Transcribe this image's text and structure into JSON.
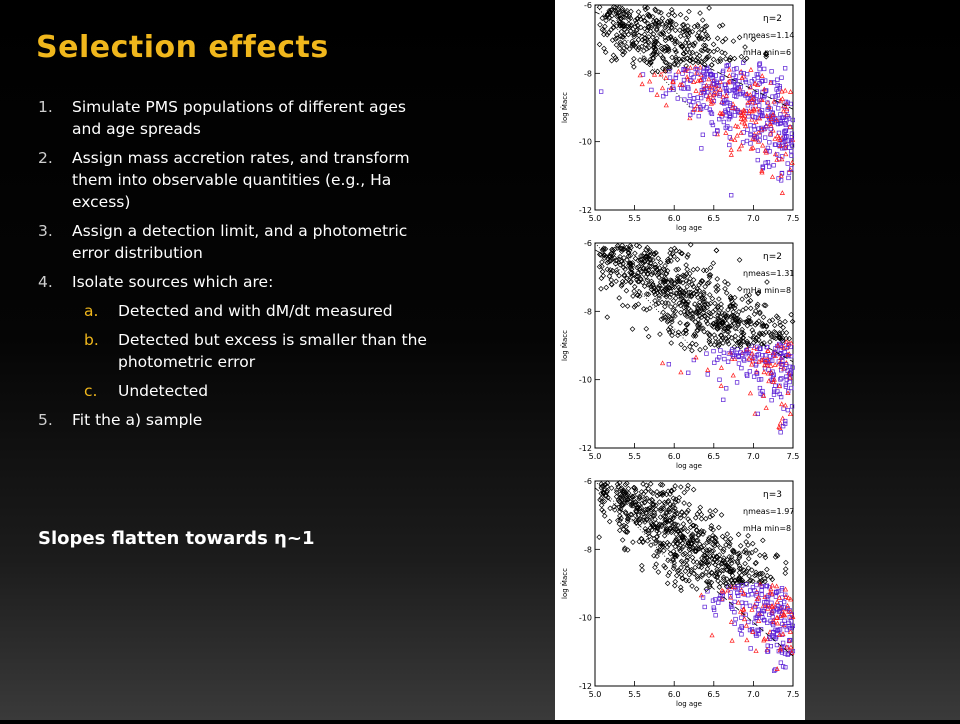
{
  "slide": {
    "title": "Selection effects",
    "items": [
      {
        "num": "1.",
        "text": "Simulate PMS populations of different ages and age spreads"
      },
      {
        "num": "2.",
        "text": "Assign mass accretion rates, and transform them into observable quantities (e.g., Ha excess)"
      },
      {
        "num": "3.",
        "text": "Assign a detection limit, and a photometric error distribution"
      },
      {
        "num": "4.",
        "text": "Isolate sources which are:"
      }
    ],
    "subitems": [
      {
        "num": "a.",
        "text": "Detected and with dM/dt measured"
      },
      {
        "num": "b.",
        "text": "Detected but excess is smaller than the photometric error"
      },
      {
        "num": "c.",
        "text": "Undetected"
      }
    ],
    "item5": {
      "num": "5.",
      "text": "Fit the a) sample"
    },
    "conclusion": "Slopes flatten towards η~1"
  },
  "chart_data": [
    {
      "type": "scatter",
      "xlabel": "log age",
      "ylabel": "log Ṁacc",
      "xlim": [
        5.0,
        7.5
      ],
      "ylim": [
        -12,
        -6
      ],
      "xticks": [
        "5.0",
        "5.5",
        "6.0",
        "6.5",
        "7.0",
        "7.5"
      ],
      "yticks": [
        "-6",
        "-8",
        "-10",
        "-12"
      ],
      "annotations": [
        "η=2",
        "ηmeas=1.14",
        "mHa min=6"
      ],
      "eta": 2,
      "eta_meas": 1.14,
      "m_lim": 6
    },
    {
      "type": "scatter",
      "xlabel": "log age",
      "ylabel": "log Ṁacc",
      "xlim": [
        5.0,
        7.5
      ],
      "ylim": [
        -12,
        -6
      ],
      "xticks": [
        "5.0",
        "5.5",
        "6.0",
        "6.5",
        "7.0",
        "7.5"
      ],
      "yticks": [
        "-6",
        "-8",
        "-10",
        "-12"
      ],
      "annotations": [
        "η=2",
        "ηmeas=1.31",
        "mHa min=8"
      ],
      "eta": 2,
      "eta_meas": 1.31,
      "m_lim": 8
    },
    {
      "type": "scatter",
      "xlabel": "log age",
      "ylabel": "log Ṁacc",
      "xlim": [
        5.0,
        7.5
      ],
      "ylim": [
        -12,
        -6
      ],
      "xticks": [
        "5.0",
        "5.5",
        "6.0",
        "6.5",
        "7.0",
        "7.5"
      ],
      "yticks": [
        "-6",
        "-8",
        "-10",
        "-12"
      ],
      "annotations": [
        "η=3",
        "ηmeas=1.97",
        "mHa min=8"
      ],
      "eta": 3,
      "eta_meas": 1.97,
      "m_lim": 8
    }
  ],
  "colors": {
    "title": "#f0b71c",
    "black_points": "#000000",
    "blue_points": "#5a1fd6",
    "red_points": "#ff1a1a"
  }
}
